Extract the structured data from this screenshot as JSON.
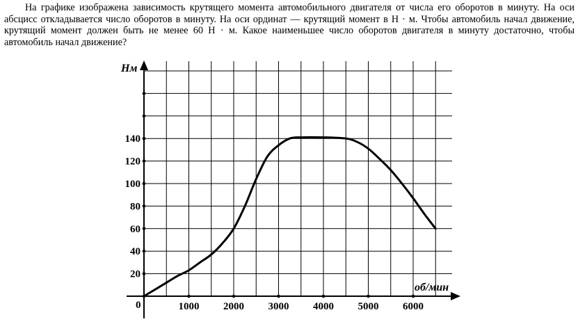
{
  "problem_text": "На графике изображена зависимость крутящего момента автомобильного двигателя от числа его оборотов в минуту. На оси абсцисс откладывается число оборотов в минуту. На оси ординат — крутящий момент в Н · м. Чтобы автомобиль начал движение, крутящий момент должен быть не менее 60 Н · м. Какое наименьшее число оборотов двигателя в минуту достаточно, чтобы автомобиль начал движение?",
  "chart_data": {
    "type": "line",
    "xlabel": "об/мин",
    "ylabel": "Нм",
    "origin_label": "0",
    "xlim": [
      0,
      7000
    ],
    "ylim": [
      0,
      220
    ],
    "grid": true,
    "x_ticks": [
      1000,
      2000,
      3000,
      4000,
      5000,
      6000
    ],
    "x_tick_labels": [
      "1000",
      "2000",
      "3000",
      "4000",
      "5000",
      "6000"
    ],
    "y_ticks": [
      20,
      40,
      60,
      80,
      100,
      120,
      140
    ],
    "y_tick_labels": [
      "20",
      "40",
      "60",
      "80",
      "100",
      "120",
      "140"
    ],
    "series": [
      {
        "x": [
          0,
          250,
          500,
          750,
          1000,
          1250,
          1500,
          1750,
          2000,
          2250,
          2500,
          2750,
          3000,
          3250,
          3500,
          4000,
          4500,
          4750,
          5000,
          5250,
          5500,
          5750,
          6000,
          6250,
          6500
        ],
        "y": [
          0,
          6,
          12,
          18,
          23,
          30,
          37,
          47,
          60,
          80,
          104,
          124,
          134,
          140,
          141,
          141,
          140,
          137,
          131,
          122,
          112,
          100,
          87,
          73,
          60
        ]
      }
    ]
  }
}
